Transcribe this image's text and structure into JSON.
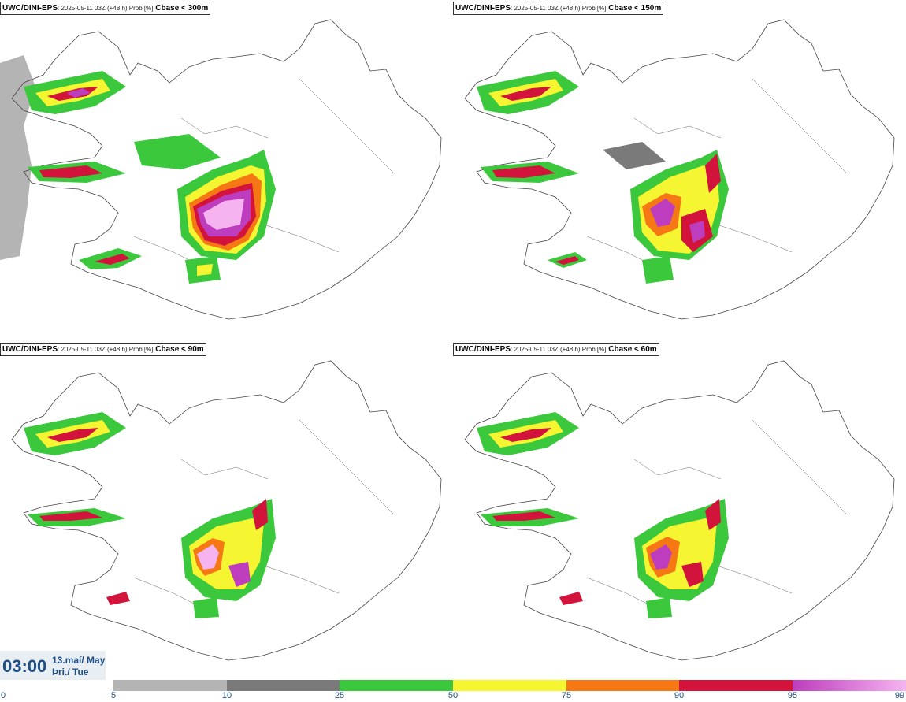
{
  "panels": [
    {
      "model": "UWC/DINI-EPS",
      "run_info": ": 2025-05-11 03Z (+48 h) Prob [%]",
      "threshold": "Cbase < 300m"
    },
    {
      "model": "UWC/DINI-EPS",
      "run_info": ": 2025-05-11 03Z (+48 h) Prob [%]",
      "threshold": "Cbase < 150m"
    },
    {
      "model": "UWC/DINI-EPS",
      "run_info": ": 2025-05-11 03Z (+48 h) Prob [%]",
      "threshold": "Cbase < 90m"
    },
    {
      "model": "UWC/DINI-EPS",
      "run_info": ": 2025-05-11 03Z (+48 h) Prob [%]",
      "threshold": "Cbase < 60m"
    }
  ],
  "valid_time": {
    "time": "03:00",
    "date_line1": "13.maí/ May",
    "date_line2": "Þri./ Tue"
  },
  "legend": {
    "ticks": [
      "0",
      "5",
      "10",
      "25",
      "50",
      "75",
      "90",
      "95",
      "99"
    ],
    "colors": {
      "5-10": "#b4b4b4",
      "10-25": "#7a7a7a",
      "25-50": "#3cc83c",
      "50-75": "#f5f532",
      "75-90": "#f57814",
      "90-95": "#d2143c",
      "95-99": "#be3cbe",
      "99": "#f5b4f0"
    }
  }
}
